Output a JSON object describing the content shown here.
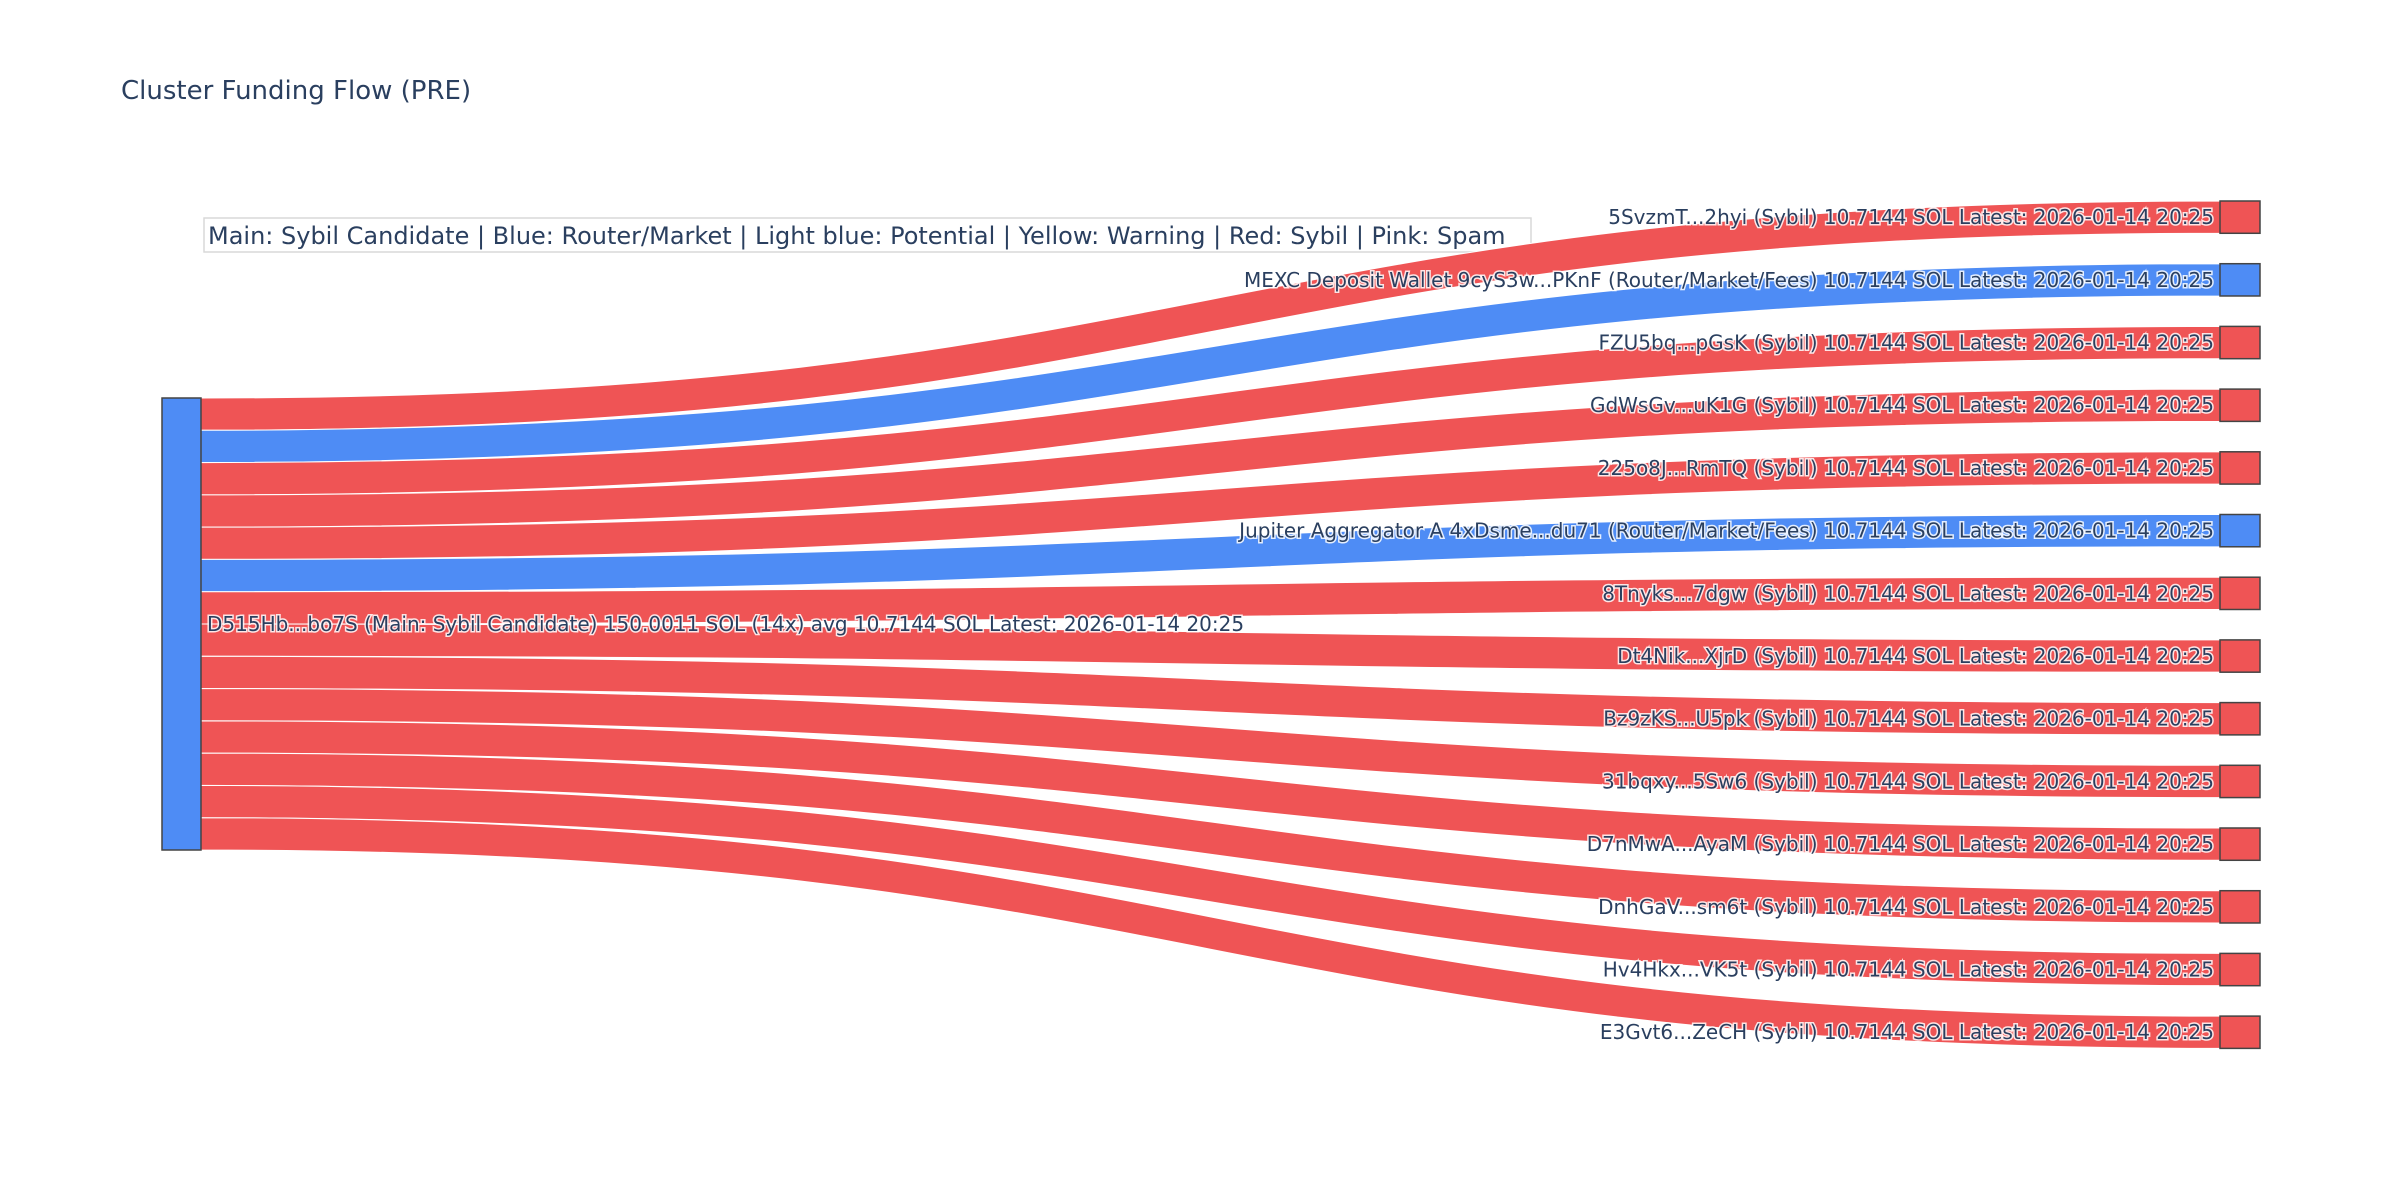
{
  "chart_data": {
    "type": "sankey",
    "title": "Cluster Funding Flow (PRE)",
    "legend_box": "Main: Sybil Candidate  |  Blue: Router/Market | Light blue: Potential | Yellow: Warning | Red: Sybil | Pink: Spam",
    "colors": {
      "sybil": "#ef5455",
      "router": "#4e8cf5",
      "main": "#4e8cf5",
      "node_border": "#444444"
    },
    "source": {
      "label": "D515Hb...bo7S (Main: Sybil Candidate) 150.0011 SOL (14x) avg 10.7144 SOL Latest: 2026-01-14 20:25",
      "type": "main",
      "total": 150.0011
    },
    "targets": [
      {
        "label": "5SvzmT...2hyi (Sybil) 10.7144 SOL Latest: 2026-01-14 20:25",
        "type": "sybil",
        "value": 10.7144
      },
      {
        "label": "MEXC Deposit Wallet 9cyS3w...PKnF (Router/Market/Fees) 10.7144 SOL Latest: 2026-01-14 20:25",
        "type": "router",
        "value": 10.7144
      },
      {
        "label": "FZU5bq...pGsK (Sybil) 10.7144 SOL Latest: 2026-01-14 20:25",
        "type": "sybil",
        "value": 10.7144
      },
      {
        "label": "GdWsGv...uK1G (Sybil) 10.7144 SOL Latest: 2026-01-14 20:25",
        "type": "sybil",
        "value": 10.7144
      },
      {
        "label": "225o8J...RmTQ (Sybil) 10.7144 SOL Latest: 2026-01-14 20:25",
        "type": "sybil",
        "value": 10.7144
      },
      {
        "label": "Jupiter Aggregator A 4xDsme...du71 (Router/Market/Fees) 10.7144 SOL Latest: 2026-01-14 20:25",
        "type": "router",
        "value": 10.7144
      },
      {
        "label": "8Tnyks...7dgw (Sybil) 10.7144 SOL Latest: 2026-01-14 20:25",
        "type": "sybil",
        "value": 10.7144
      },
      {
        "label": "Dt4Nik...XjrD (Sybil) 10.7144 SOL Latest: 2026-01-14 20:25",
        "type": "sybil",
        "value": 10.7144
      },
      {
        "label": "Bz9zKS...U5pk (Sybil) 10.7144 SOL Latest: 2026-01-14 20:25",
        "type": "sybil",
        "value": 10.7144
      },
      {
        "label": "31bqxy...5Sw6 (Sybil) 10.7144 SOL Latest: 2026-01-14 20:25",
        "type": "sybil",
        "value": 10.7144
      },
      {
        "label": "D7nMwA...AyaM (Sybil) 10.7144 SOL Latest: 2026-01-14 20:25",
        "type": "sybil",
        "value": 10.7144
      },
      {
        "label": "DnhGaV...sm6t (Sybil) 10.7144 SOL Latest: 2026-01-14 20:25",
        "type": "sybil",
        "value": 10.7144
      },
      {
        "label": "Hv4Hkx...VK5t (Sybil) 10.7144 SOL Latest: 2026-01-14 20:25",
        "type": "sybil",
        "value": 10.7144
      },
      {
        "label": "E3Gvt6...ZeCH (Sybil) 10.7144 SOL Latest: 2026-01-14 20:25",
        "type": "sybil",
        "value": 10.7144
      }
    ]
  }
}
